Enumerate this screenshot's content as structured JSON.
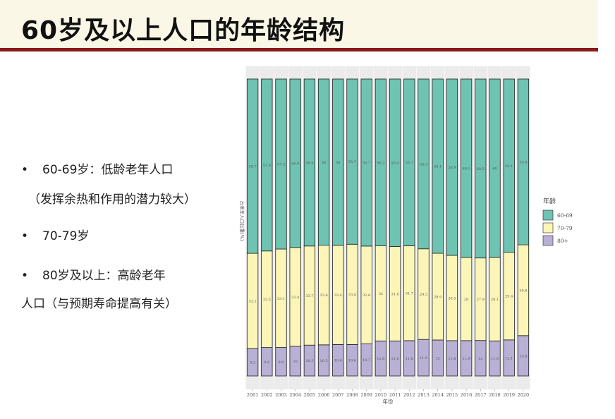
{
  "slide": {
    "title": "60岁及以上人口的年龄结构"
  },
  "bullets": [
    {
      "marker": "•",
      "text": "60-69岁：低龄老年人口"
    },
    {
      "marker": "",
      "text": "（发挥余热和作用的潜力较大）"
    },
    {
      "marker": "•",
      "text": "70-79岁"
    },
    {
      "marker": "•",
      "text": "80岁及以上：高龄老年"
    },
    {
      "marker": "",
      "text": "人口（与预期寿命提高有关）"
    }
  ],
  "chart_data": {
    "type": "bar",
    "stacked": true,
    "normalized": true,
    "categories": [
      "2001",
      "2002",
      "2003",
      "2004",
      "2005",
      "2006",
      "2007",
      "2008",
      "2009",
      "2010",
      "2011",
      "2012",
      "2013",
      "2014",
      "2015",
      "2016",
      "2017",
      "2018",
      "2019",
      "2020"
    ],
    "series": [
      {
        "name": "60-69",
        "color": "#6fc3b2",
        "values": [
          58.7,
          57.9,
          57.2,
          56.9,
          56.8,
          56,
          56,
          55.7,
          55.7,
          56.2,
          56.4,
          55.7,
          55.3,
          58.1,
          58.9,
          60.1,
          60.5,
          60,
          58.1,
          55.9
        ]
      },
      {
        "name": "70-79",
        "color": "#fbf6b7",
        "values": [
          32.1,
          32.5,
          33.1,
          33.4,
          33.7,
          33.6,
          33.4,
          33.8,
          32.6,
          32,
          31.8,
          31.7,
          29.5,
          28.9,
          28.5,
          28,
          27.9,
          28.1,
          29.4,
          30.6
        ]
      },
      {
        "name": "80+",
        "color": "#b9b0d6",
        "values": [
          9.2,
          9.6,
          9.6,
          10,
          10.5,
          10.5,
          10.6,
          10.6,
          10.7,
          11.8,
          11.8,
          11.8,
          11.9,
          12,
          11.8,
          11.9,
          12,
          11.8,
          12.1,
          13.6
        ]
      }
    ],
    "xlabel": "年份",
    "ylabel": "占老年人口比重(%)",
    "legend": {
      "title": "年龄",
      "position": "right"
    },
    "ylim": [
      0,
      100
    ],
    "grid": true
  }
}
